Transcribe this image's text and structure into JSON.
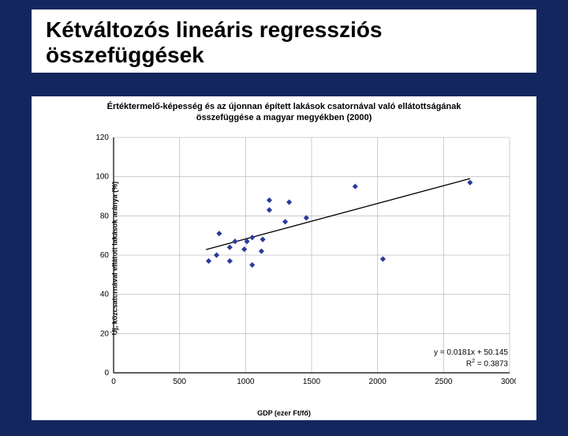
{
  "slide": {
    "title": "Kétváltozós lineáris regressziós összefüggések"
  },
  "chart": {
    "type": "scatter",
    "title_line1": "Értéktermelő-képesség és az újonnan épített lakások csatornával való ellátottságának",
    "title_line2": "összefüggése a magyar megyékben (2000)",
    "title_fontsize": 11,
    "xlabel": "GDP (ezer Ft/fő)",
    "ylabel": "Új, közcsatornával ellátott lakások aránya (%)",
    "label_fontsize": 9,
    "xlim": [
      0,
      3000
    ],
    "ylim": [
      0,
      120
    ],
    "xticks": [
      0,
      500,
      1000,
      1500,
      2000,
      2500,
      3000
    ],
    "yticks": [
      0,
      20,
      40,
      60,
      80,
      100,
      120
    ],
    "tick_fontsize": 10,
    "grid_color": "#c0c0c0",
    "background_color": "#ffffff",
    "axis_color": "#000000",
    "marker_color": "#2a3a9e",
    "marker_size": 5,
    "line_color": "#000000",
    "line_width": 1.3,
    "regression": {
      "slope": 0.0181,
      "intercept": 50.145,
      "r2": 0.3873,
      "x_start": 700,
      "x_end": 2700,
      "eq_text": "y = 0.0181x + 50.145",
      "r2_text": "R² = 0.3873"
    },
    "points": [
      {
        "x": 720,
        "y": 57
      },
      {
        "x": 780,
        "y": 60
      },
      {
        "x": 800,
        "y": 71
      },
      {
        "x": 880,
        "y": 64
      },
      {
        "x": 880,
        "y": 57
      },
      {
        "x": 920,
        "y": 67
      },
      {
        "x": 990,
        "y": 63
      },
      {
        "x": 1010,
        "y": 67
      },
      {
        "x": 1050,
        "y": 69
      },
      {
        "x": 1050,
        "y": 55
      },
      {
        "x": 1120,
        "y": 62
      },
      {
        "x": 1130,
        "y": 68
      },
      {
        "x": 1180,
        "y": 88
      },
      {
        "x": 1180,
        "y": 83
      },
      {
        "x": 1300,
        "y": 77
      },
      {
        "x": 1330,
        "y": 87
      },
      {
        "x": 1460,
        "y": 79
      },
      {
        "x": 1830,
        "y": 95
      },
      {
        "x": 2040,
        "y": 58
      },
      {
        "x": 2700,
        "y": 97
      }
    ]
  }
}
